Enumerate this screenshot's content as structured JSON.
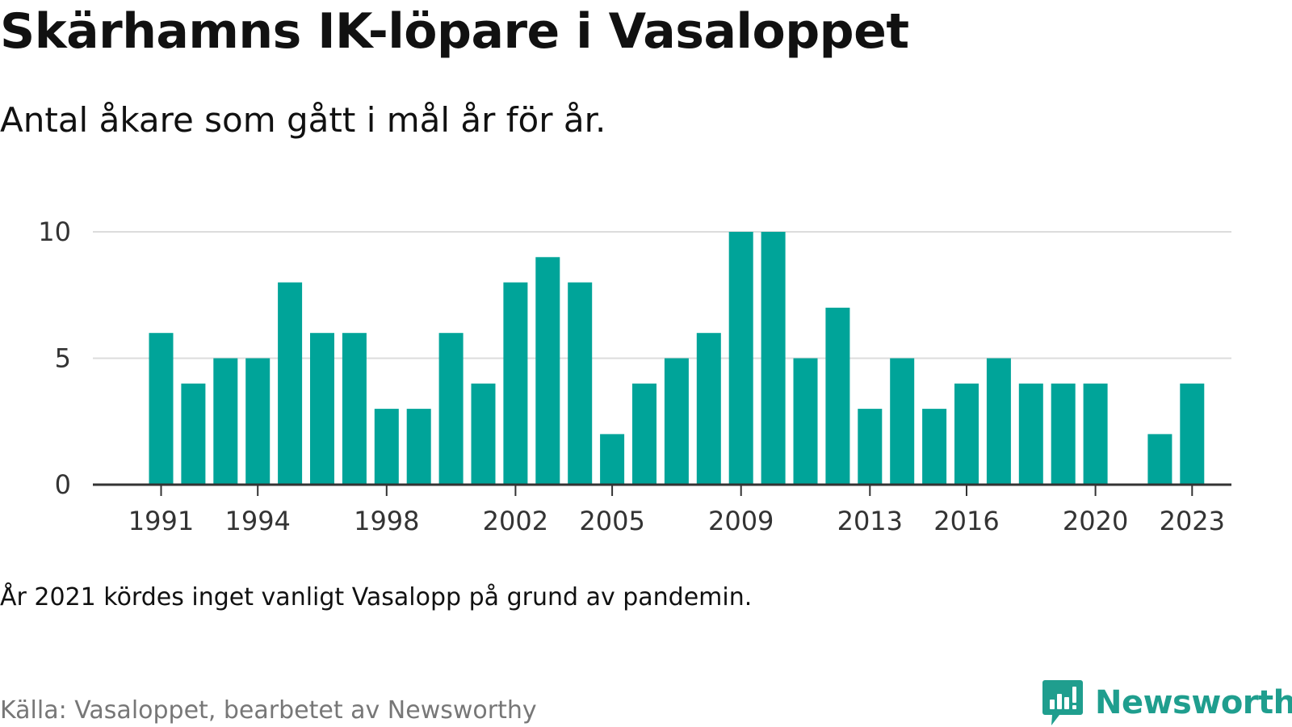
{
  "header": {
    "title": "Skärhamns IK-löpare i Vasaloppet",
    "subtitle": "Antal åkare som gått i mål år för år."
  },
  "footer": {
    "note": "År 2021 kördes inget vanligt Vasalopp på grund av pandemin.",
    "source": "Källa: Vasaloppet, bearbetet av Newsworthy",
    "brand": "Newsworthy",
    "brand_icon": "newsworthy-logo-icon"
  },
  "colors": {
    "bar": "#00a499",
    "grid": "#dcdcdc",
    "axis": "#333333",
    "brand": "#1f9e8e"
  },
  "chart_data": {
    "type": "bar",
    "categories": [
      "1991",
      "1992",
      "1993",
      "1994",
      "1995",
      "1996",
      "1997",
      "1998",
      "1999",
      "2000",
      "2001",
      "2002",
      "2003",
      "2004",
      "2005",
      "2006",
      "2007",
      "2008",
      "2009",
      "2010",
      "2011",
      "2012",
      "2013",
      "2014",
      "2015",
      "2016",
      "2017",
      "2018",
      "2019",
      "2020",
      "2021",
      "2022",
      "2023"
    ],
    "values": [
      6,
      4,
      5,
      5,
      8,
      6,
      6,
      3,
      3,
      6,
      4,
      8,
      9,
      8,
      2,
      4,
      5,
      6,
      10,
      10,
      5,
      7,
      3,
      5,
      3,
      4,
      5,
      4,
      4,
      4,
      null,
      2,
      4
    ],
    "x_tick_labels": [
      "1991",
      "1994",
      "1998",
      "2002",
      "2005",
      "2009",
      "2013",
      "2016",
      "2020",
      "2023"
    ],
    "y_ticks": [
      0,
      5,
      10
    ],
    "ylim": [
      0,
      10
    ],
    "xlabel": "",
    "ylabel": "",
    "grid": true,
    "legend": "none"
  }
}
